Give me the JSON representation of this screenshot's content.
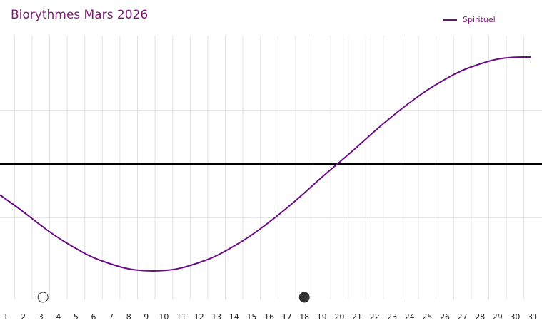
{
  "chart_data": {
    "type": "line",
    "title": "Biorythmes Mars 2026",
    "xlabel": "",
    "ylabel": "",
    "x": [
      1,
      2,
      3,
      4,
      5,
      6,
      7,
      8,
      9,
      10,
      11,
      12,
      13,
      14,
      15,
      16,
      17,
      18,
      19,
      20,
      21,
      22,
      23,
      24,
      25,
      26,
      27,
      28,
      29,
      30,
      31
    ],
    "ylim": [
      -1,
      1
    ],
    "grid": true,
    "legend_position": "top-right",
    "series": [
      {
        "name": "Spirituel",
        "color": "#6a0d83",
        "values": [
          -0.29,
          -0.43,
          -0.56,
          -0.68,
          -0.78,
          -0.87,
          -0.93,
          -0.98,
          -1.0,
          -1.0,
          -0.98,
          -0.93,
          -0.87,
          -0.78,
          -0.68,
          -0.56,
          -0.43,
          -0.29,
          -0.14,
          0.0,
          0.14,
          0.29,
          0.43,
          0.56,
          0.68,
          0.78,
          0.87,
          0.93,
          0.98,
          1.0,
          1.0
        ]
      }
    ],
    "markers": [
      {
        "day": 3,
        "style": "open"
      },
      {
        "day": 18,
        "style": "filled"
      }
    ]
  }
}
